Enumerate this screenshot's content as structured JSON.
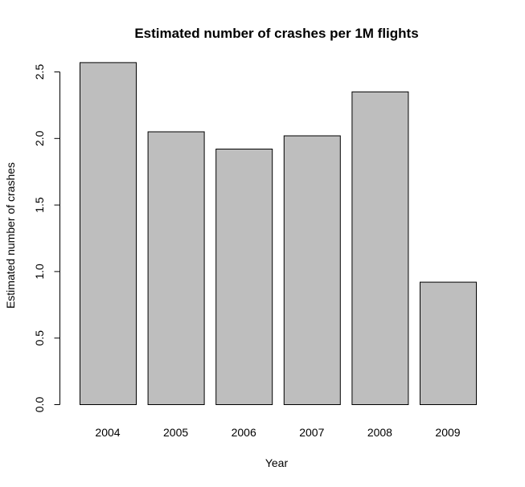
{
  "chart_data": {
    "type": "bar",
    "title": "Estimated number of crashes per 1M flights",
    "xlabel": "Year",
    "ylabel": "Estimated number of crashes",
    "categories": [
      "2004",
      "2005",
      "2006",
      "2007",
      "2008",
      "2009"
    ],
    "values": [
      2.57,
      2.05,
      1.92,
      2.02,
      2.35,
      0.92
    ],
    "ylim": [
      0,
      2.5
    ],
    "yticks": [
      0.0,
      0.5,
      1.0,
      1.5,
      2.0,
      2.5
    ],
    "ytick_labels": [
      "0.0",
      "0.5",
      "1.0",
      "1.5",
      "2.0",
      "2.5"
    ],
    "bar_color": "#bebebe",
    "bar_border_color": "#000000",
    "grid": false,
    "legend": "none"
  }
}
